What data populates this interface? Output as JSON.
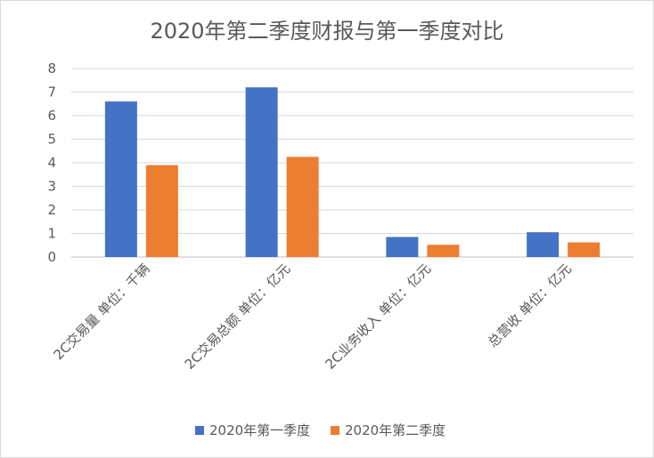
{
  "chart_data": {
    "type": "bar",
    "title": "2020年第二季度财报与第一季度对比",
    "categories": [
      "2C交易量 单位：千辆",
      "2C交易总额 单位：亿元",
      "2C业务收入 单位：亿元",
      "总营收 单位：亿元"
    ],
    "series": [
      {
        "name": "2020年第一季度",
        "values": [
          6.6,
          7.2,
          0.85,
          1.05
        ],
        "color": "#4472c4"
      },
      {
        "name": "2020年第二季度",
        "values": [
          3.9,
          4.25,
          0.52,
          0.62
        ],
        "color": "#ed7d31"
      }
    ],
    "ylim": [
      0,
      8
    ],
    "yticks": [
      0,
      1,
      2,
      3,
      4,
      5,
      6,
      7,
      8
    ],
    "grid": true,
    "legend_position": "bottom"
  }
}
